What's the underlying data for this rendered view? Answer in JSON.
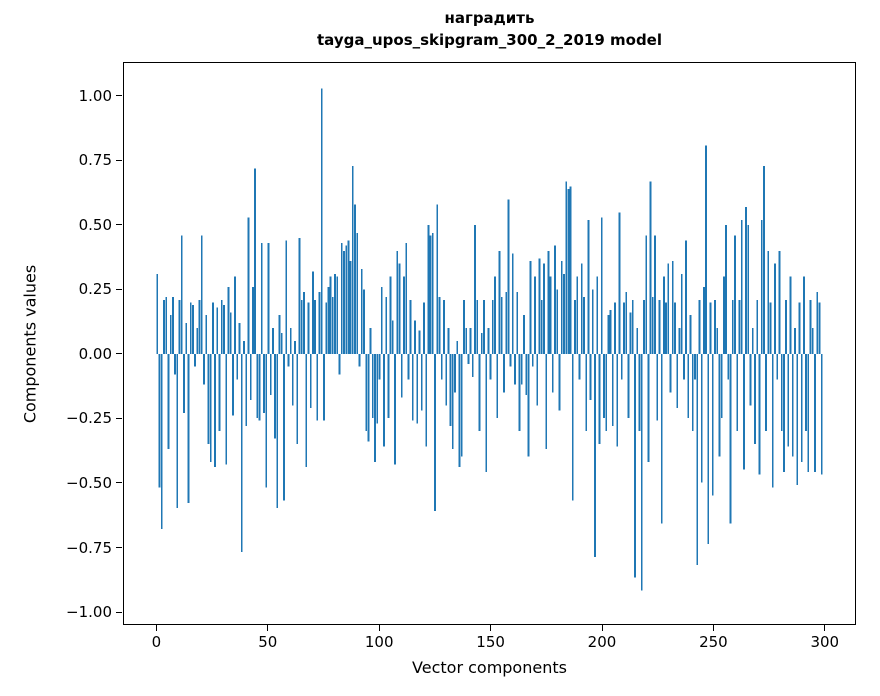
{
  "chart_data": {
    "type": "bar",
    "title": "наградить",
    "subtitle": "tayga_upos_skipgram_300_2_2019 model",
    "xlabel": "Vector components",
    "ylabel": "Components values",
    "bar_color": "#1f77b4",
    "background": "#ffffff",
    "grid": false,
    "legend": "none",
    "x_start": 0,
    "bar_width": 0.8,
    "xlim": [
      -15,
      314
    ],
    "ylim": [
      -1.05,
      1.13
    ],
    "xticks": [
      {
        "v": 0,
        "label": "0"
      },
      {
        "v": 50,
        "label": "50"
      },
      {
        "v": 100,
        "label": "100"
      },
      {
        "v": 150,
        "label": "150"
      },
      {
        "v": 200,
        "label": "200"
      },
      {
        "v": 250,
        "label": "250"
      },
      {
        "v": 300,
        "label": "300"
      }
    ],
    "yticks": [
      {
        "v": 1.0,
        "label": "1.00"
      },
      {
        "v": 0.75,
        "label": "0.75"
      },
      {
        "v": 0.5,
        "label": "0.50"
      },
      {
        "v": 0.25,
        "label": "0.25"
      },
      {
        "v": 0.0,
        "label": "0.00"
      },
      {
        "v": -0.25,
        "label": "−0.25"
      },
      {
        "v": -0.5,
        "label": "−0.50"
      },
      {
        "v": -0.75,
        "label": "−0.75"
      },
      {
        "v": -1.0,
        "label": "−1.00"
      }
    ],
    "values": [
      0.31,
      -0.52,
      -0.68,
      0.21,
      0.22,
      -0.37,
      0.15,
      0.22,
      -0.08,
      -0.6,
      0.21,
      0.46,
      -0.23,
      0.12,
      -0.58,
      0.2,
      0.19,
      -0.05,
      0.1,
      0.21,
      0.46,
      -0.12,
      0.15,
      -0.35,
      -0.42,
      0.2,
      -0.44,
      0.18,
      -0.3,
      0.21,
      0.19,
      -0.43,
      0.26,
      0.16,
      -0.24,
      0.3,
      -0.1,
      0.12,
      -0.77,
      0.05,
      -0.28,
      0.53,
      -0.18,
      0.26,
      0.72,
      -0.25,
      -0.26,
      0.43,
      -0.23,
      -0.52,
      0.43,
      -0.16,
      0.1,
      -0.33,
      -0.6,
      0.15,
      0.08,
      -0.57,
      0.44,
      -0.05,
      0.1,
      -0.2,
      0.05,
      -0.35,
      0.45,
      0.21,
      0.24,
      -0.44,
      0.2,
      -0.21,
      0.32,
      0.21,
      -0.26,
      0.24,
      1.03,
      -0.26,
      0.2,
      0.26,
      0.3,
      0.22,
      0.31,
      0.3,
      -0.08,
      0.43,
      0.4,
      0.42,
      0.44,
      0.36,
      0.73,
      0.58,
      0.47,
      -0.05,
      0.33,
      0.25,
      -0.3,
      -0.34,
      0.1,
      -0.25,
      -0.42,
      -0.27,
      -0.1,
      0.26,
      -0.36,
      0.22,
      -0.25,
      0.3,
      0.13,
      -0.43,
      0.4,
      0.35,
      -0.17,
      0.3,
      0.43,
      -0.1,
      0.21,
      -0.26,
      0.13,
      -0.27,
      0.09,
      -0.22,
      0.2,
      -0.36,
      0.5,
      0.46,
      0.47,
      -0.61,
      0.58,
      0.22,
      -0.1,
      0.21,
      -0.2,
      0.1,
      -0.28,
      -0.37,
      -0.15,
      0.05,
      -0.44,
      -0.4,
      0.21,
      0.1,
      -0.04,
      0.1,
      -0.09,
      0.5,
      0.21,
      -0.3,
      0.08,
      0.21,
      -0.46,
      0.1,
      -0.1,
      0.21,
      0.3,
      -0.25,
      0.4,
      0.22,
      -0.15,
      0.24,
      0.6,
      -0.05,
      0.39,
      -0.12,
      0.24,
      -0.3,
      -0.12,
      0.15,
      -0.16,
      -0.4,
      0.36,
      -0.05,
      0.3,
      -0.2,
      0.37,
      0.21,
      0.35,
      -0.37,
      0.4,
      0.3,
      -0.15,
      0.42,
      0.25,
      -0.22,
      0.36,
      0.31,
      0.67,
      0.64,
      0.65,
      -0.57,
      0.21,
      0.3,
      -0.1,
      0.35,
      0.22,
      -0.3,
      0.52,
      -0.18,
      0.25,
      -0.79,
      0.3,
      -0.35,
      0.53,
      -0.25,
      -0.3,
      0.15,
      0.17,
      -0.28,
      0.2,
      -0.36,
      0.55,
      -0.1,
      0.2,
      0.24,
      -0.25,
      0.16,
      0.21,
      -0.87,
      0.1,
      -0.3,
      -0.92,
      0.21,
      0.46,
      -0.42,
      0.67,
      0.22,
      0.46,
      -0.26,
      0.21,
      -0.66,
      0.3,
      0.2,
      0.35,
      -0.15,
      0.36,
      0.2,
      -0.21,
      0.1,
      0.31,
      -0.1,
      0.44,
      -0.25,
      0.15,
      -0.3,
      -0.1,
      -0.82,
      0.21,
      -0.5,
      0.26,
      0.81,
      -0.74,
      0.2,
      -0.55,
      0.21,
      0.1,
      -0.4,
      -0.25,
      0.3,
      0.5,
      -0.1,
      -0.66,
      0.21,
      0.46,
      -0.3,
      0.21,
      0.52,
      -0.45,
      0.57,
      0.5,
      -0.2,
      0.1,
      -0.35,
      0.21,
      -0.47,
      0.52,
      0.73,
      -0.3,
      0.4,
      0.2,
      -0.52,
      0.35,
      -0.1,
      0.4,
      -0.3,
      -0.46,
      0.21,
      -0.36,
      0.3,
      -0.4,
      0.1,
      -0.51,
      0.2,
      -0.42,
      0.3,
      -0.3,
      -0.46,
      0.21,
      0.1,
      -0.46,
      0.24,
      0.2,
      -0.47
    ]
  }
}
